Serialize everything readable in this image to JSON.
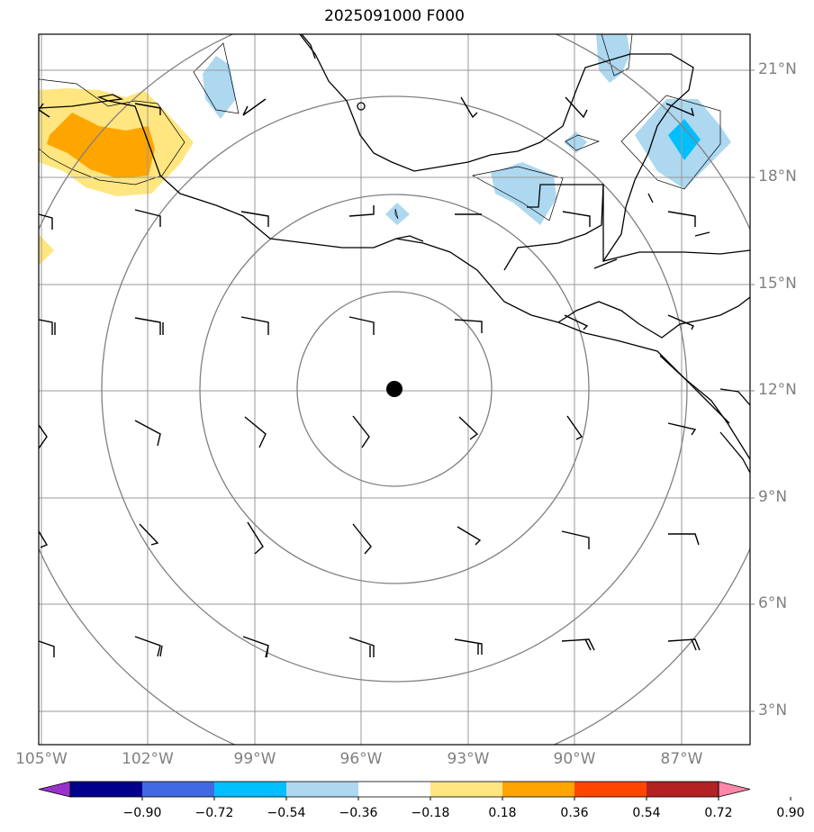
{
  "title": "2025091000 F000",
  "lat_ticks": [
    "21°N",
    "18°N",
    "15°N",
    "12°N",
    "9°N",
    "6°N",
    "3°N"
  ],
  "lon_ticks": [
    "105°W",
    "102°W",
    "99°W",
    "96°W",
    "93°W",
    "90°W",
    "87°W"
  ],
  "colorbar": {
    "ticks": [
      "−0.90",
      "−0.72",
      "−0.54",
      "−0.36",
      "−0.18",
      "0.18",
      "0.36",
      "0.54",
      "0.72",
      "0.90"
    ],
    "colors": [
      "#9932cc",
      "#00008b",
      "#4169e1",
      "#00bfff",
      "#add8f0",
      "#ffffff",
      "#ffe680",
      "#ffa500",
      "#ff4500",
      "#b22222",
      "#ff88aa"
    ]
  },
  "center_marker": {
    "lon": -95.0,
    "lat": 12.0
  }
}
